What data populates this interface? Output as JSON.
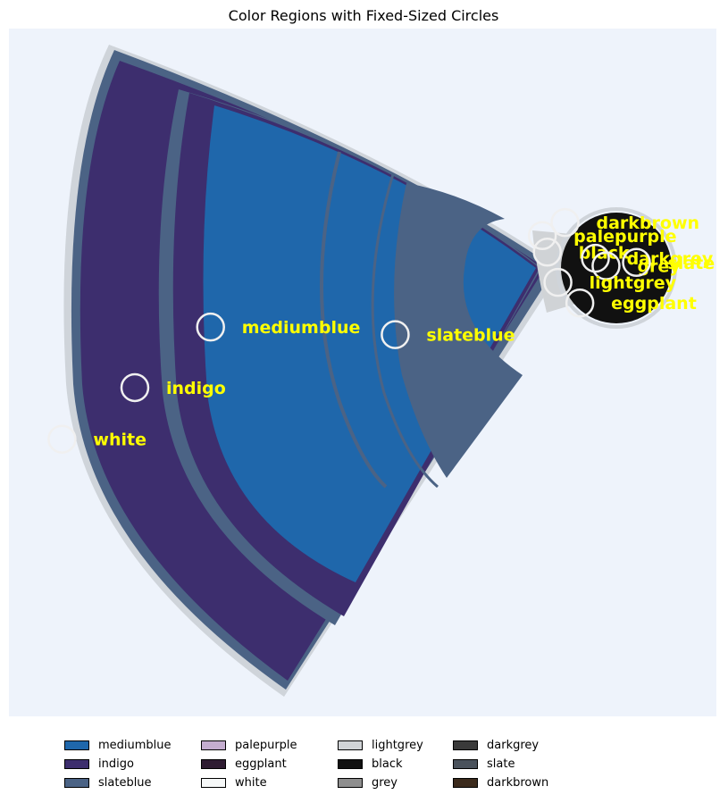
{
  "chart_data": {
    "type": "scatter",
    "title": "Color Regions with Fixed-Sized Circles",
    "xlabel": "",
    "ylabel": "",
    "axes_visible": false,
    "plot_background": "#eef3fb",
    "xlim": [
      0,
      100
    ],
    "ylim": [
      0,
      100
    ],
    "regions": [
      {
        "name": "mediumblue",
        "color": "#1f67ab"
      },
      {
        "name": "indigo",
        "color": "#3d2e6e"
      },
      {
        "name": "slateblue",
        "color": "#4b6385"
      },
      {
        "name": "palepurple",
        "color": "#c4adcf"
      },
      {
        "name": "eggplant",
        "color": "#2f1c32"
      },
      {
        "name": "white",
        "color": "#f6f8f8"
      },
      {
        "name": "lightgrey",
        "color": "#d0d3d6"
      },
      {
        "name": "black",
        "color": "#111111"
      },
      {
        "name": "grey",
        "color": "#8e8e8e"
      },
      {
        "name": "darkgrey",
        "color": "#3a3a3a"
      },
      {
        "name": "slate",
        "color": "#4a525c"
      },
      {
        "name": "darkbrown",
        "color": "#3b2a1c"
      }
    ],
    "points": [
      {
        "label": "mediumblue",
        "x": 28.5,
        "y": 56.6
      },
      {
        "label": "slateblue",
        "x": 54.6,
        "y": 55.5
      },
      {
        "label": "indigo",
        "x": 17.8,
        "y": 47.8
      },
      {
        "label": "white",
        "x": 7.5,
        "y": 40.3
      },
      {
        "label": "darkbrown",
        "x": 78.6,
        "y": 71.8
      },
      {
        "label": "palepurple",
        "x": 75.4,
        "y": 69.9
      },
      {
        "label": "black",
        "x": 76.1,
        "y": 67.5
      },
      {
        "label": "darkgrey",
        "x": 82.9,
        "y": 66.6
      },
      {
        "label": "grey",
        "x": 84.4,
        "y": 65.5
      },
      {
        "label": "slate",
        "x": 88.7,
        "y": 66.0
      },
      {
        "label": "lightgrey",
        "x": 77.6,
        "y": 63.1
      },
      {
        "label": "eggplant",
        "x": 80.7,
        "y": 60.1
      }
    ],
    "legend": {
      "placement": "bottom",
      "columns": 5,
      "entries": [
        "mediumblue",
        "indigo",
        "slateblue",
        "palepurple",
        "eggplant",
        "white",
        "lightgrey",
        "black",
        "grey",
        "darkgrey",
        "slate",
        "darkbrown"
      ]
    },
    "legend_labels": {
      "mediumblue": "mediumblue",
      "indigo": "indigo",
      "slateblue": "slateblue",
      "palepurple": "palepurple",
      "eggplant": "eggplant",
      "white": "white",
      "lightgrey": "lightgrey",
      "black": "black",
      "grey": "grey",
      "darkgrey": "darkgrey",
      "slate": "slate",
      "darkbrown": "darkbrown"
    }
  }
}
